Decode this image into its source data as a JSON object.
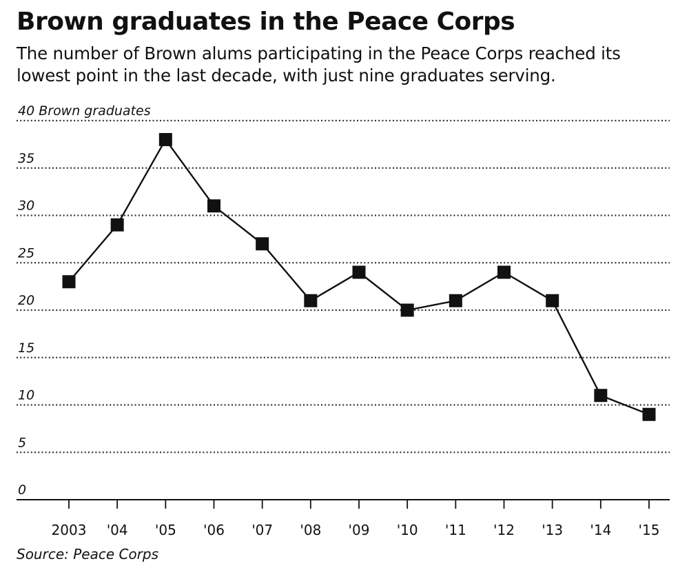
{
  "title": "Brown graduates in the Peace Corps",
  "subtitle": "The number of Brown alums participating in the Peace Corps reached its lowest point in the last decade, with just nine graduates serving.",
  "source": "Source: Peace Corps",
  "chart_data": {
    "type": "line",
    "title": "Brown graduates in the Peace Corps",
    "ylabel": "Brown graduates",
    "categories": [
      "2003",
      "'04",
      "'05",
      "'06",
      "'07",
      "'08",
      "'09",
      "'10",
      "'11",
      "'12",
      "'13",
      "'14",
      "'15"
    ],
    "values": [
      23,
      29,
      38,
      31,
      27,
      21,
      24,
      20,
      21,
      24,
      21,
      11,
      9
    ],
    "ylim": [
      0,
      40
    ],
    "yticks": [
      0,
      5,
      10,
      15,
      20,
      25,
      30,
      35,
      40
    ],
    "ytick_labels": [
      "0",
      "5",
      "10",
      "15",
      "20",
      "25",
      "30",
      "35",
      "40 Brown graduates"
    ],
    "grid": "dotted horizontal",
    "marker": "square",
    "color": "#111111"
  }
}
